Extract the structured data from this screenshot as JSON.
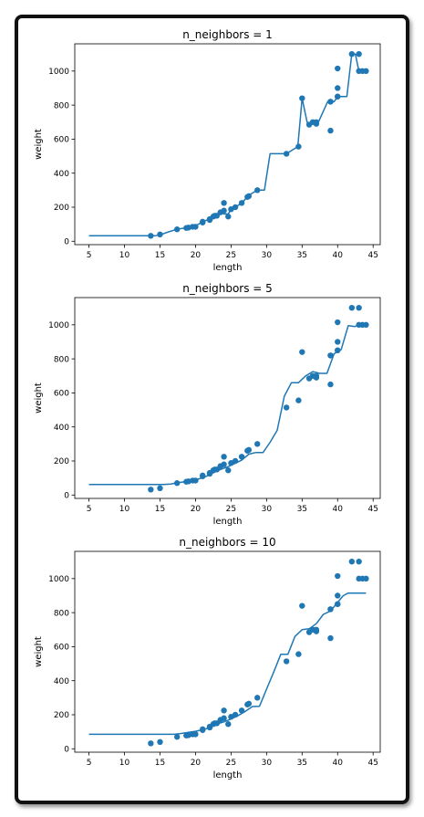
{
  "chart_data": [
    {
      "type": "scatter",
      "title": "n_neighbors = 1",
      "xlabel": "length",
      "ylabel": "weight",
      "xlim": [
        3,
        46
      ],
      "ylim": [
        -20,
        1160
      ],
      "xticks": [
        "5",
        "10",
        "15",
        "20",
        "25",
        "30",
        "35",
        "40",
        "45"
      ],
      "yticks": [
        "0",
        "200",
        "400",
        "600",
        "800",
        "1000"
      ],
      "color": "#1f77b4",
      "series": [
        {
          "kind": "points",
          "x": [
            13.7,
            15.0,
            17.4,
            18.7,
            19.0,
            19.6,
            20.0,
            21.0,
            21.0,
            22.0,
            22.0,
            22.5,
            22.7,
            23.0,
            23.5,
            24.0,
            24.0,
            24.6,
            25.0,
            25.6,
            26.5,
            27.3,
            27.5,
            28.7,
            32.8,
            34.5,
            35.0,
            36.0,
            36.5,
            37.0,
            37.0,
            39.0,
            39.0,
            39.0,
            40.0,
            40.0,
            40.0,
            40.0,
            42.0,
            43.0,
            43.0,
            43.5,
            44.0
          ],
          "y": [
            32,
            40,
            70,
            78,
            80,
            85,
            85,
            110,
            115,
            125,
            130,
            145,
            150,
            150,
            170,
            180,
            225,
            145,
            188,
            200,
            225,
            260,
            265,
            300,
            514,
            556,
            840,
            685,
            700,
            700,
            690,
            650,
            820,
            820,
            850,
            900,
            1015,
            850,
            1100,
            1100,
            1000,
            1000,
            1000
          ]
        },
        {
          "kind": "line",
          "x": [
            5,
            13.7,
            14.3,
            15.2,
            16.2,
            17.4,
            18.0,
            18.7,
            19.0,
            19.6,
            20.0,
            21.0,
            22.0,
            22.5,
            22.7,
            23.0,
            23.5,
            24.0,
            24.6,
            25.0,
            25.6,
            26.5,
            27.3,
            27.5,
            28.7,
            29.7,
            30.5,
            32.8,
            34.4,
            35.0,
            35.7,
            36.5,
            37.3,
            38.6,
            39.5,
            40.0,
            41.3,
            42.0,
            42.5,
            43.0,
            44.0
          ],
          "y": [
            32,
            32,
            32,
            40,
            55,
            70,
            75,
            78,
            80,
            85,
            90,
            115,
            130,
            145,
            150,
            155,
            170,
            160,
            160,
            188,
            200,
            225,
            260,
            270,
            300,
            300,
            514,
            514,
            556,
            840,
            700,
            690,
            700,
            820,
            820,
            850,
            850,
            1100,
            1100,
            1000,
            1000
          ]
        }
      ]
    },
    {
      "type": "scatter",
      "title": "n_neighbors = 5",
      "xlabel": "length",
      "ylabel": "weight",
      "xlim": [
        3,
        46
      ],
      "ylim": [
        -20,
        1160
      ],
      "xticks": [
        "5",
        "10",
        "15",
        "20",
        "25",
        "30",
        "35",
        "40",
        "45"
      ],
      "yticks": [
        "0",
        "200",
        "400",
        "600",
        "800",
        "1000"
      ],
      "color": "#1f77b4",
      "series": [
        {
          "kind": "points",
          "x": [
            13.7,
            15.0,
            17.4,
            18.7,
            19.0,
            19.6,
            20.0,
            21.0,
            21.0,
            22.0,
            22.0,
            22.5,
            22.7,
            23.0,
            23.5,
            24.0,
            24.0,
            24.6,
            25.0,
            25.6,
            26.5,
            27.3,
            27.5,
            28.7,
            32.8,
            34.5,
            35.0,
            36.0,
            36.5,
            37.0,
            37.0,
            39.0,
            39.0,
            39.0,
            40.0,
            40.0,
            40.0,
            40.0,
            42.0,
            43.0,
            43.0,
            43.5,
            44.0
          ],
          "y": [
            32,
            40,
            70,
            78,
            80,
            85,
            85,
            110,
            115,
            125,
            130,
            145,
            150,
            150,
            170,
            180,
            225,
            145,
            188,
            200,
            225,
            260,
            265,
            300,
            514,
            556,
            840,
            685,
            700,
            700,
            690,
            650,
            820,
            820,
            850,
            900,
            1015,
            850,
            1100,
            1100,
            1000,
            1000,
            1000
          ]
        },
        {
          "kind": "line",
          "x": [
            5,
            15.5,
            16.5,
            17.5,
            18.5,
            19.5,
            20.5,
            21.5,
            22.5,
            23.5,
            24.5,
            25.5,
            26.5,
            27.5,
            28.5,
            29.5,
            30.5,
            31.5,
            32.5,
            33.5,
            34.5,
            35.5,
            36.5,
            37.5,
            38.5,
            39.5,
            40.5,
            41.5,
            42.5,
            43.0,
            44.0
          ],
          "y": [
            62,
            62,
            65,
            72,
            78,
            85,
            95,
            110,
            130,
            150,
            165,
            185,
            205,
            240,
            250,
            250,
            310,
            380,
            580,
            660,
            660,
            700,
            725,
            715,
            715,
            830,
            855,
            995,
            990,
            1005,
            1005
          ]
        }
      ]
    },
    {
      "type": "scatter",
      "title": "n_neighbors = 10",
      "xlabel": "length",
      "ylabel": "weight",
      "xlim": [
        3,
        46
      ],
      "ylim": [
        -20,
        1160
      ],
      "xticks": [
        "5",
        "10",
        "15",
        "20",
        "25",
        "30",
        "35",
        "40",
        "45"
      ],
      "yticks": [
        "0",
        "200",
        "400",
        "600",
        "800",
        "1000"
      ],
      "color": "#1f77b4",
      "series": [
        {
          "kind": "points",
          "x": [
            13.7,
            15.0,
            17.4,
            18.7,
            19.0,
            19.6,
            20.0,
            21.0,
            21.0,
            22.0,
            22.0,
            22.5,
            22.7,
            23.0,
            23.5,
            24.0,
            24.0,
            24.6,
            25.0,
            25.6,
            26.5,
            27.3,
            27.5,
            28.7,
            32.8,
            34.5,
            35.0,
            36.0,
            36.5,
            37.0,
            37.0,
            39.0,
            39.0,
            39.0,
            40.0,
            40.0,
            40.0,
            40.0,
            42.0,
            43.0,
            43.0,
            43.5,
            44.0
          ],
          "y": [
            32,
            40,
            70,
            78,
            80,
            85,
            85,
            110,
            115,
            125,
            130,
            145,
            150,
            150,
            170,
            180,
            225,
            145,
            188,
            200,
            225,
            260,
            265,
            300,
            514,
            556,
            840,
            685,
            700,
            700,
            690,
            650,
            820,
            820,
            850,
            900,
            1015,
            850,
            1100,
            1100,
            1000,
            1000,
            1000
          ]
        },
        {
          "kind": "line",
          "x": [
            5,
            17.0,
            18.0,
            19.0,
            20.0,
            21.0,
            22.0,
            23.0,
            24.0,
            25.0,
            26.0,
            27.0,
            28.0,
            29.0,
            30.0,
            31.0,
            32.0,
            33.0,
            34.0,
            35.0,
            36.0,
            37.0,
            38.0,
            39.0,
            40.0,
            40.8,
            41.5,
            42.5,
            44.0
          ],
          "y": [
            85,
            85,
            90,
            97,
            103,
            112,
            124,
            145,
            158,
            175,
            195,
            220,
            248,
            250,
            350,
            450,
            555,
            555,
            660,
            700,
            705,
            735,
            790,
            810,
            860,
            900,
            915,
            915,
            915
          ]
        }
      ]
    }
  ]
}
